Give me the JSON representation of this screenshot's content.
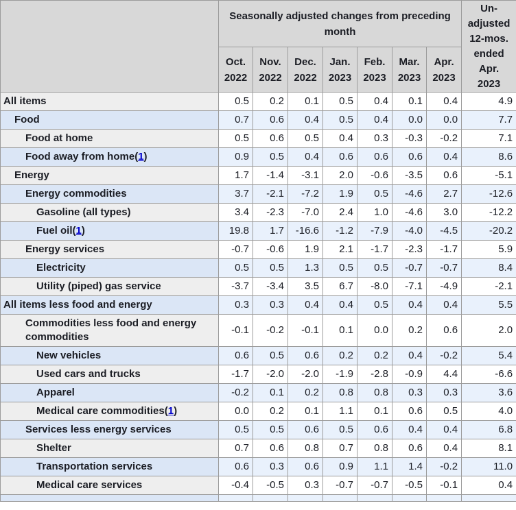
{
  "header": {
    "group_title": "Seasonally adjusted changes from preceding\nmonth",
    "unadjusted_title": "Un-\nadjusted\n12-mos.\nended\nApr.\n2023",
    "months": [
      "Oct.\n2022",
      "Nov.\n2022",
      "Dec.\n2022",
      "Jan.\n2023",
      "Feb.\n2023",
      "Mar.\n2023",
      "Apr.\n2023"
    ]
  },
  "colors": {
    "header_bg": "#d8d8d8",
    "border": "#9b9b9b",
    "white_row_stub_bg": "#eeeeee",
    "white_row_data_bg": "#ffffff",
    "blue_row_stub_bg": "#dbe6f6",
    "blue_row_data_bg": "#e9f1fc",
    "text": "#1b1d24",
    "footnote_link": "#0000cc"
  },
  "chart_data": {
    "type": "table",
    "title": "Seasonally adjusted changes from preceding month",
    "columns": [
      "Oct. 2022",
      "Nov. 2022",
      "Dec. 2022",
      "Jan. 2023",
      "Feb. 2023",
      "Mar. 2023",
      "Apr. 2023",
      "Un-adjusted 12-mos. ended Apr. 2023"
    ],
    "rows": [
      {
        "label": "All items",
        "indent": 0,
        "footnote": null,
        "values": [
          0.5,
          0.2,
          0.1,
          0.5,
          0.4,
          0.1,
          0.4,
          4.9
        ]
      },
      {
        "label": "Food",
        "indent": 1,
        "footnote": null,
        "values": [
          0.7,
          0.6,
          0.4,
          0.5,
          0.4,
          0.0,
          0.0,
          7.7
        ]
      },
      {
        "label": "Food at home",
        "indent": 2,
        "footnote": null,
        "values": [
          0.5,
          0.6,
          0.5,
          0.4,
          0.3,
          -0.3,
          -0.2,
          7.1
        ]
      },
      {
        "label": "Food away from home",
        "indent": 2,
        "footnote": "1",
        "values": [
          0.9,
          0.5,
          0.4,
          0.6,
          0.6,
          0.6,
          0.4,
          8.6
        ]
      },
      {
        "label": "Energy",
        "indent": 1,
        "footnote": null,
        "values": [
          1.7,
          -1.4,
          -3.1,
          2.0,
          -0.6,
          -3.5,
          0.6,
          -5.1
        ]
      },
      {
        "label": "Energy commodities",
        "indent": 2,
        "footnote": null,
        "values": [
          3.7,
          -2.1,
          -7.2,
          1.9,
          0.5,
          -4.6,
          2.7,
          -12.6
        ]
      },
      {
        "label": "Gasoline (all types)",
        "indent": 3,
        "footnote": null,
        "values": [
          3.4,
          -2.3,
          -7.0,
          2.4,
          1.0,
          -4.6,
          3.0,
          -12.2
        ]
      },
      {
        "label": "Fuel oil",
        "indent": 3,
        "footnote": "1",
        "values": [
          19.8,
          1.7,
          -16.6,
          -1.2,
          -7.9,
          -4.0,
          -4.5,
          -20.2
        ]
      },
      {
        "label": "Energy services",
        "indent": 2,
        "footnote": null,
        "values": [
          -0.7,
          -0.6,
          1.9,
          2.1,
          -1.7,
          -2.3,
          -1.7,
          5.9
        ]
      },
      {
        "label": "Electricity",
        "indent": 3,
        "footnote": null,
        "values": [
          0.5,
          0.5,
          1.3,
          0.5,
          0.5,
          -0.7,
          -0.7,
          8.4
        ]
      },
      {
        "label": "Utility (piped) gas service",
        "indent": 3,
        "footnote": null,
        "values": [
          -3.7,
          -3.4,
          3.5,
          6.7,
          -8.0,
          -7.1,
          -4.9,
          -2.1
        ]
      },
      {
        "label": "All items less food and energy",
        "indent": 0,
        "footnote": null,
        "values": [
          0.3,
          0.3,
          0.4,
          0.4,
          0.5,
          0.4,
          0.4,
          5.5
        ]
      },
      {
        "label": "Commodities less food and energy commodities",
        "indent": 2,
        "footnote": null,
        "values": [
          -0.1,
          -0.2,
          -0.1,
          0.1,
          0.0,
          0.2,
          0.6,
          2.0
        ]
      },
      {
        "label": "New vehicles",
        "indent": 3,
        "footnote": null,
        "values": [
          0.6,
          0.5,
          0.6,
          0.2,
          0.2,
          0.4,
          -0.2,
          5.4
        ]
      },
      {
        "label": "Used cars and trucks",
        "indent": 3,
        "footnote": null,
        "values": [
          -1.7,
          -2.0,
          -2.0,
          -1.9,
          -2.8,
          -0.9,
          4.4,
          -6.6
        ]
      },
      {
        "label": "Apparel",
        "indent": 3,
        "footnote": null,
        "values": [
          -0.2,
          0.1,
          0.2,
          0.8,
          0.8,
          0.3,
          0.3,
          3.6
        ]
      },
      {
        "label": "Medical care commodities",
        "indent": 3,
        "footnote": "1",
        "values": [
          0.0,
          0.2,
          0.1,
          1.1,
          0.1,
          0.6,
          0.5,
          4.0
        ]
      },
      {
        "label": "Services less energy services",
        "indent": 2,
        "footnote": null,
        "values": [
          0.5,
          0.5,
          0.6,
          0.5,
          0.6,
          0.4,
          0.4,
          6.8
        ]
      },
      {
        "label": "Shelter",
        "indent": 3,
        "footnote": null,
        "values": [
          0.7,
          0.6,
          0.8,
          0.7,
          0.8,
          0.6,
          0.4,
          8.1
        ]
      },
      {
        "label": "Transportation services",
        "indent": 3,
        "footnote": null,
        "values": [
          0.6,
          0.3,
          0.6,
          0.9,
          1.1,
          1.4,
          -0.2,
          11.0
        ]
      },
      {
        "label": "Medical care services",
        "indent": 3,
        "footnote": null,
        "values": [
          -0.4,
          -0.5,
          0.3,
          -0.7,
          -0.7,
          -0.5,
          -0.1,
          0.4
        ]
      }
    ]
  }
}
